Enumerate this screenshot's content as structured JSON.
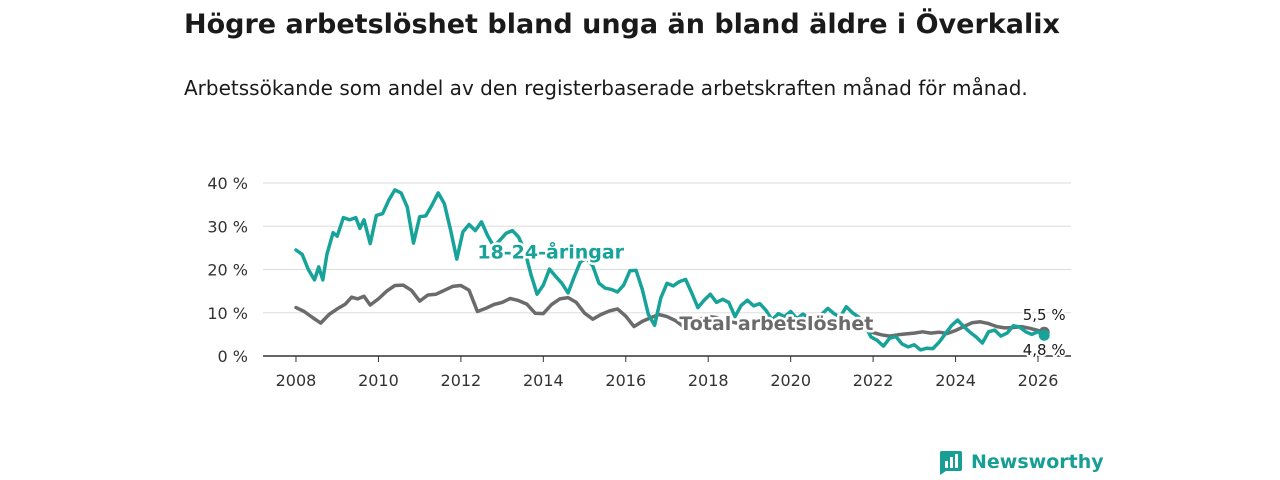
{
  "title": "Högre arbetslöshet bland unga än bland äldre i Överkalix",
  "subtitle": "Arbetssökande som andel av den registerbaserade arbetskraften månad för månad.",
  "brand": {
    "name": "Newsworthy",
    "icon": "bar-chart-logo-icon"
  },
  "chart_data": {
    "type": "line",
    "title": "Högre arbetslöshet bland unga än bland äldre i Överkalix",
    "subtitle": "Arbetssökande som andel av den registerbaserade arbetskraften månad för månad.",
    "xlabel": "",
    "ylabel": "",
    "xlim": [
      2007.2,
      2026.8
    ],
    "ylim": [
      0,
      40
    ],
    "y_ticks": [
      0,
      10,
      20,
      30,
      40
    ],
    "y_tick_labels": [
      "0 %",
      "10 %",
      "20 %",
      "30 %",
      "40 %"
    ],
    "x_ticks": [
      2008,
      2010,
      2012,
      2014,
      2016,
      2018,
      2020,
      2022,
      2024,
      2026
    ],
    "x_tick_labels": [
      "2008",
      "2010",
      "2012",
      "2014",
      "2016",
      "2018",
      "2020",
      "2022",
      "2024",
      "2026"
    ],
    "grid": true,
    "series": [
      {
        "name": "Total arbetslöshet",
        "label": "Total arbetslöshet",
        "color": "#6b6b6b",
        "end_label": "5,5 %",
        "points": [
          [
            2008.0,
            11.2
          ],
          [
            2008.2,
            10.3
          ],
          [
            2008.4,
            8.9
          ],
          [
            2008.6,
            7.6
          ],
          [
            2008.8,
            9.6
          ],
          [
            2009.0,
            10.9
          ],
          [
            2009.2,
            12.0
          ],
          [
            2009.35,
            13.6
          ],
          [
            2009.5,
            13.2
          ],
          [
            2009.65,
            13.8
          ],
          [
            2009.8,
            11.8
          ],
          [
            2010.0,
            13.2
          ],
          [
            2010.2,
            15.0
          ],
          [
            2010.4,
            16.3
          ],
          [
            2010.6,
            16.4
          ],
          [
            2010.8,
            15.2
          ],
          [
            2011.0,
            12.7
          ],
          [
            2011.2,
            14.1
          ],
          [
            2011.4,
            14.3
          ],
          [
            2011.6,
            15.2
          ],
          [
            2011.8,
            16.1
          ],
          [
            2012.0,
            16.3
          ],
          [
            2012.2,
            15.2
          ],
          [
            2012.4,
            10.3
          ],
          [
            2012.6,
            11.0
          ],
          [
            2012.8,
            11.9
          ],
          [
            2013.0,
            12.4
          ],
          [
            2013.2,
            13.3
          ],
          [
            2013.4,
            12.8
          ],
          [
            2013.6,
            12.0
          ],
          [
            2013.8,
            9.9
          ],
          [
            2014.0,
            9.8
          ],
          [
            2014.2,
            11.9
          ],
          [
            2014.4,
            13.2
          ],
          [
            2014.6,
            13.5
          ],
          [
            2014.8,
            12.4
          ],
          [
            2015.0,
            9.9
          ],
          [
            2015.2,
            8.5
          ],
          [
            2015.4,
            9.6
          ],
          [
            2015.6,
            10.4
          ],
          [
            2015.8,
            10.9
          ],
          [
            2016.0,
            9.2
          ],
          [
            2016.2,
            6.8
          ],
          [
            2016.4,
            8.0
          ],
          [
            2016.6,
            8.8
          ],
          [
            2016.8,
            9.6
          ],
          [
            2017.0,
            9.1
          ],
          [
            2017.2,
            8.2
          ],
          [
            2017.4,
            6.8
          ],
          [
            2017.6,
            7.2
          ],
          [
            2017.8,
            8.5
          ],
          [
            2018.0,
            9.1
          ],
          [
            2018.2,
            8.9
          ],
          [
            2018.4,
            8.0
          ],
          [
            2018.6,
            7.8
          ],
          [
            2018.8,
            7.4
          ],
          [
            2019.0,
            7.9
          ],
          [
            2019.2,
            8.4
          ],
          [
            2019.4,
            7.6
          ],
          [
            2019.6,
            7.2
          ],
          [
            2019.8,
            6.8
          ],
          [
            2020.0,
            7.4
          ],
          [
            2020.2,
            8.1
          ],
          [
            2020.4,
            8.0
          ],
          [
            2020.6,
            7.6
          ],
          [
            2020.8,
            7.1
          ],
          [
            2021.0,
            7.2
          ],
          [
            2021.2,
            7.6
          ],
          [
            2021.4,
            7.2
          ],
          [
            2021.6,
            6.9
          ],
          [
            2021.8,
            6.2
          ],
          [
            2022.0,
            5.4
          ],
          [
            2022.2,
            4.9
          ],
          [
            2022.4,
            4.6
          ],
          [
            2022.6,
            4.9
          ],
          [
            2022.8,
            5.1
          ],
          [
            2023.0,
            5.3
          ],
          [
            2023.2,
            5.6
          ],
          [
            2023.4,
            5.3
          ],
          [
            2023.6,
            5.5
          ],
          [
            2023.8,
            5.2
          ],
          [
            2024.0,
            5.9
          ],
          [
            2024.2,
            6.8
          ],
          [
            2024.4,
            7.7
          ],
          [
            2024.6,
            7.9
          ],
          [
            2024.8,
            7.5
          ],
          [
            2025.0,
            6.8
          ],
          [
            2025.2,
            6.5
          ],
          [
            2025.4,
            6.6
          ],
          [
            2025.6,
            6.8
          ],
          [
            2025.8,
            6.4
          ],
          [
            2026.0,
            5.9
          ],
          [
            2026.15,
            5.5
          ]
        ]
      },
      {
        "name": "18-24-åringar",
        "label": "18-24-åringar",
        "color": "#17a399",
        "end_label": "4,8 %",
        "points": [
          [
            2008.0,
            24.5
          ],
          [
            2008.15,
            23.5
          ],
          [
            2008.3,
            20.0
          ],
          [
            2008.45,
            17.6
          ],
          [
            2008.55,
            20.6
          ],
          [
            2008.65,
            17.6
          ],
          [
            2008.75,
            23.5
          ],
          [
            2008.9,
            28.5
          ],
          [
            2009.0,
            27.7
          ],
          [
            2009.15,
            32.0
          ],
          [
            2009.3,
            31.5
          ],
          [
            2009.45,
            32.0
          ],
          [
            2009.55,
            29.5
          ],
          [
            2009.65,
            31.5
          ],
          [
            2009.8,
            26.0
          ],
          [
            2009.95,
            32.5
          ],
          [
            2010.1,
            32.9
          ],
          [
            2010.25,
            36.0
          ],
          [
            2010.4,
            38.4
          ],
          [
            2010.55,
            37.7
          ],
          [
            2010.7,
            34.4
          ],
          [
            2010.85,
            26.1
          ],
          [
            2011.0,
            32.2
          ],
          [
            2011.15,
            32.4
          ],
          [
            2011.3,
            34.9
          ],
          [
            2011.45,
            37.7
          ],
          [
            2011.6,
            35.2
          ],
          [
            2011.75,
            29.1
          ],
          [
            2011.9,
            22.4
          ],
          [
            2012.05,
            28.7
          ],
          [
            2012.2,
            30.4
          ],
          [
            2012.35,
            29.0
          ],
          [
            2012.5,
            31.0
          ],
          [
            2012.65,
            27.8
          ],
          [
            2012.8,
            25.3
          ],
          [
            2012.95,
            26.8
          ],
          [
            2013.1,
            28.4
          ],
          [
            2013.25,
            29.0
          ],
          [
            2013.4,
            27.5
          ],
          [
            2013.55,
            24.3
          ],
          [
            2013.7,
            18.8
          ],
          [
            2013.85,
            14.3
          ],
          [
            2014.0,
            16.4
          ],
          [
            2014.15,
            20.1
          ],
          [
            2014.3,
            18.4
          ],
          [
            2014.45,
            16.8
          ],
          [
            2014.6,
            14.6
          ],
          [
            2014.75,
            18.3
          ],
          [
            2014.9,
            21.8
          ],
          [
            2015.05,
            22.6
          ],
          [
            2015.2,
            20.8
          ],
          [
            2015.35,
            16.8
          ],
          [
            2015.5,
            15.7
          ],
          [
            2015.65,
            15.4
          ],
          [
            2015.8,
            14.8
          ],
          [
            2015.95,
            16.4
          ],
          [
            2016.1,
            19.7
          ],
          [
            2016.25,
            19.8
          ],
          [
            2016.4,
            15.4
          ],
          [
            2016.55,
            9.6
          ],
          [
            2016.7,
            7.1
          ],
          [
            2016.85,
            13.4
          ],
          [
            2017.0,
            16.8
          ],
          [
            2017.15,
            16.2
          ],
          [
            2017.3,
            17.2
          ],
          [
            2017.45,
            17.7
          ],
          [
            2017.6,
            14.6
          ],
          [
            2017.75,
            11.2
          ],
          [
            2017.9,
            12.9
          ],
          [
            2018.05,
            14.3
          ],
          [
            2018.2,
            12.4
          ],
          [
            2018.35,
            13.1
          ],
          [
            2018.5,
            12.4
          ],
          [
            2018.65,
            9.1
          ],
          [
            2018.8,
            11.7
          ],
          [
            2018.95,
            12.9
          ],
          [
            2019.1,
            11.6
          ],
          [
            2019.25,
            12.1
          ],
          [
            2019.4,
            10.6
          ],
          [
            2019.55,
            8.3
          ],
          [
            2019.7,
            9.8
          ],
          [
            2019.85,
            9.1
          ],
          [
            2020.0,
            10.3
          ],
          [
            2020.15,
            8.6
          ],
          [
            2020.3,
            9.7
          ],
          [
            2020.45,
            8.7
          ],
          [
            2020.6,
            8.1
          ],
          [
            2020.75,
            9.6
          ],
          [
            2020.9,
            11.0
          ],
          [
            2021.05,
            9.8
          ],
          [
            2021.2,
            9.0
          ],
          [
            2021.35,
            11.4
          ],
          [
            2021.5,
            10.0
          ],
          [
            2021.65,
            9.0
          ],
          [
            2021.8,
            7.1
          ],
          [
            2021.95,
            4.4
          ],
          [
            2022.1,
            3.6
          ],
          [
            2022.25,
            2.3
          ],
          [
            2022.4,
            4.1
          ],
          [
            2022.55,
            4.5
          ],
          [
            2022.7,
            2.8
          ],
          [
            2022.85,
            2.1
          ],
          [
            2023.0,
            2.6
          ],
          [
            2023.15,
            1.4
          ],
          [
            2023.3,
            1.8
          ],
          [
            2023.45,
            1.7
          ],
          [
            2023.6,
            3.2
          ],
          [
            2023.75,
            5.1
          ],
          [
            2023.9,
            7.0
          ],
          [
            2024.05,
            8.3
          ],
          [
            2024.2,
            6.8
          ],
          [
            2024.35,
            5.5
          ],
          [
            2024.5,
            4.4
          ],
          [
            2024.65,
            3.0
          ],
          [
            2024.8,
            5.6
          ],
          [
            2024.95,
            6.0
          ],
          [
            2025.1,
            4.6
          ],
          [
            2025.25,
            5.3
          ],
          [
            2025.4,
            7.0
          ],
          [
            2025.55,
            6.7
          ],
          [
            2025.7,
            5.6
          ],
          [
            2025.85,
            5.0
          ],
          [
            2026.0,
            5.6
          ],
          [
            2026.15,
            4.8
          ]
        ]
      }
    ],
    "annotations": [
      {
        "text": "18-24-åringar",
        "x": 2012.4,
        "y": 22.5,
        "series": "18-24-åringar"
      },
      {
        "text": "Total arbetslöshet",
        "x": 2017.3,
        "y": 6.0,
        "series": "Total arbetslöshet"
      }
    ],
    "end_labels": [
      {
        "text": "5,5 %",
        "series": "Total arbetslöshet",
        "x": 2026.15,
        "y": 5.5
      },
      {
        "text": "4,8 %",
        "series": "18-24-åringar",
        "x": 2026.15,
        "y": 4.8
      }
    ]
  }
}
